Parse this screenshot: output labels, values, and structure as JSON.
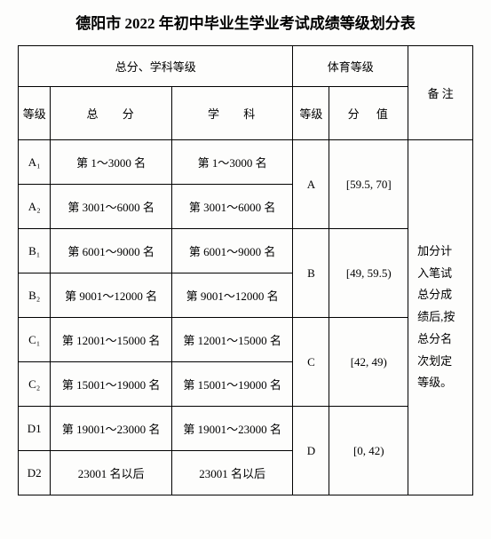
{
  "title": "德阳市 2022 年初中毕业生学业考试成绩等级划分表",
  "header": {
    "totalSubject": "总分、学科等级",
    "pe": "体育等级",
    "note": "备  注",
    "grade": "等级",
    "total": "总  分",
    "subject": "学  科",
    "peGrade": "等级",
    "peScore": "分  值"
  },
  "rows": [
    {
      "g": "A₁",
      "total": "第 1～3000 名",
      "subject": "第 1～3000 名"
    },
    {
      "g": "A₂",
      "total": "第 3001～6000 名",
      "subject": "第 3001～6000 名"
    },
    {
      "g": "B₁",
      "total": "第 6001～9000 名",
      "subject": "第 6001～9000 名"
    },
    {
      "g": "B₂",
      "total": "第 9001～12000 名",
      "subject": "第 9001～12000 名"
    },
    {
      "g": "C₁",
      "total": "第 12001～15000 名",
      "subject": "第 12001～15000 名"
    },
    {
      "g": "C₂",
      "total": "第 15001～19000 名",
      "subject": "第 15001～19000 名"
    },
    {
      "g": "D1",
      "total": "第 19001～23000 名",
      "subject": "第 19001～23000 名"
    },
    {
      "g": "D2",
      "total": "23001 名以后",
      "subject": "23001 名以后"
    }
  ],
  "pe": [
    {
      "grade": "A",
      "score": "[59.5, 70]"
    },
    {
      "grade": "B",
      "score": "[49, 59.5)"
    },
    {
      "grade": "C",
      "score": "[42, 49)"
    },
    {
      "grade": "D",
      "score": "[0, 42)"
    }
  ],
  "note": "加分计入笔试总分成绩后,按总分名次划定等级。"
}
